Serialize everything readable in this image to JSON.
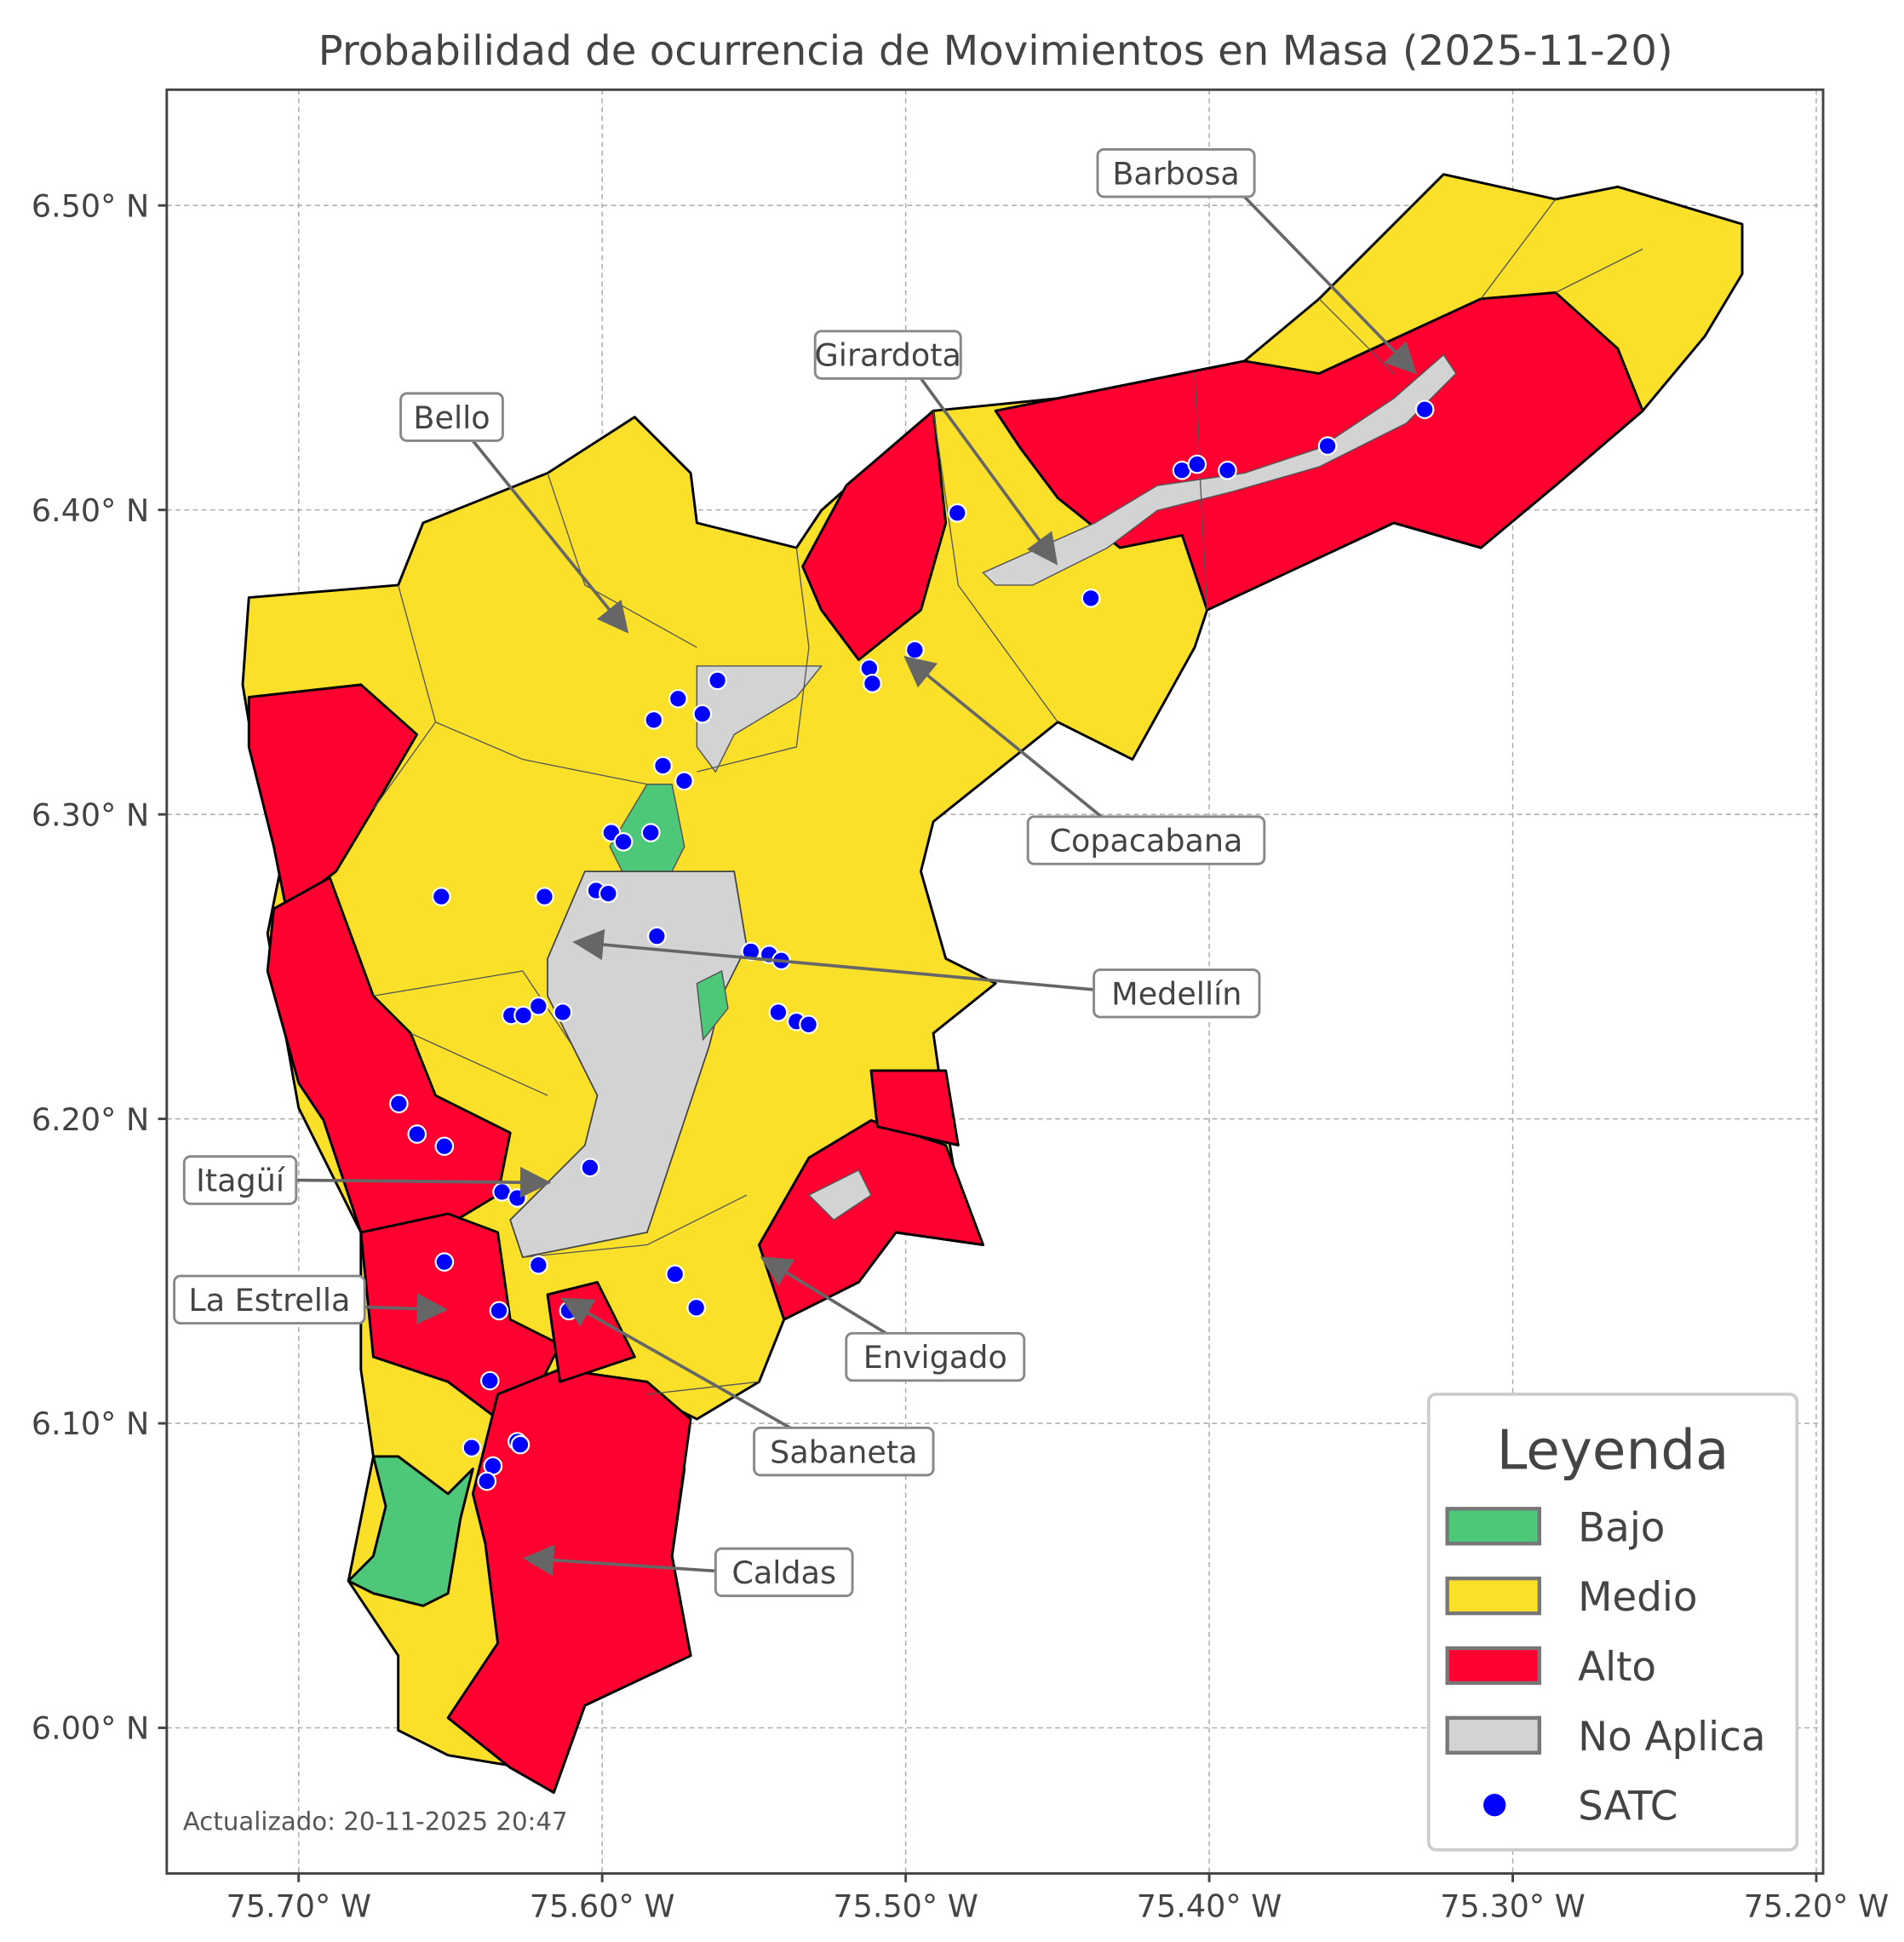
{
  "title": "Probabilidad de ocurrencia de Movimientos en Masa (2025-11-20)",
  "x_ticks": [
    "75.70° W",
    "75.60° W",
    "75.50° W",
    "75.40° W",
    "75.30° W",
    "75.20° W"
  ],
  "y_ticks": [
    "6.50° N",
    "6.40° N",
    "6.30° N",
    "6.20° N",
    "6.10° N",
    "6.00° N"
  ],
  "updated": "Actualizado: 20-11-2025 20:47",
  "colors": {
    "bajo": "#4cc878",
    "medio": "#fbe02a",
    "alto": "#ff0030",
    "no_aplica": "#d3d3d3",
    "satc": "#0000ff"
  },
  "legend": {
    "title": "Leyenda",
    "items": [
      {
        "label": "Bajo",
        "color": "#4cc878"
      },
      {
        "label": "Medio",
        "color": "#fbe02a"
      },
      {
        "label": "Alto",
        "color": "#ff0030"
      },
      {
        "label": "No Aplica",
        "color": "#d3d3d3"
      },
      {
        "label": "SATC",
        "color": "#0000ff"
      }
    ]
  },
  "municipalities": [
    "Barbosa",
    "Girardota",
    "Bello",
    "Copacabana",
    "Medellín",
    "Itagüí",
    "La Estrella",
    "Envigado",
    "Sabaneta",
    "Caldas"
  ],
  "satc_points": [
    [
      75.483,
      6.399
    ],
    [
      75.409,
      6.413
    ],
    [
      75.404,
      6.415
    ],
    [
      75.394,
      6.413
    ],
    [
      75.361,
      6.421
    ],
    [
      75.329,
      6.433
    ],
    [
      75.439,
      6.371
    ],
    [
      75.497,
      6.354
    ],
    [
      75.512,
      6.348
    ],
    [
      75.511,
      6.343
    ],
    [
      75.562,
      6.344
    ],
    [
      75.575,
      6.338
    ],
    [
      75.567,
      6.333
    ],
    [
      75.583,
      6.331
    ],
    [
      75.58,
      6.316
    ],
    [
      75.573,
      6.311
    ],
    [
      75.597,
      6.294
    ],
    [
      75.593,
      6.291
    ],
    [
      75.584,
      6.294
    ],
    [
      75.602,
      6.275
    ],
    [
      75.598,
      6.274
    ],
    [
      75.619,
      6.273
    ],
    [
      75.653,
      6.273
    ],
    [
      75.582,
      6.26
    ],
    [
      75.551,
      6.255
    ],
    [
      75.545,
      6.254
    ],
    [
      75.541,
      6.252
    ],
    [
      75.542,
      6.235
    ],
    [
      75.536,
      6.232
    ],
    [
      75.532,
      6.231
    ],
    [
      75.621,
      6.237
    ],
    [
      75.63,
      6.234
    ],
    [
      75.626,
      6.234
    ],
    [
      75.613,
      6.235
    ],
    [
      75.667,
      6.205
    ],
    [
      75.661,
      6.195
    ],
    [
      75.652,
      6.191
    ],
    [
      75.604,
      6.184
    ],
    [
      75.633,
      6.176
    ],
    [
      75.628,
      6.174
    ],
    [
      75.621,
      6.152
    ],
    [
      75.652,
      6.153
    ],
    [
      75.576,
      6.149
    ],
    [
      75.569,
      6.138
    ],
    [
      75.634,
      6.137
    ],
    [
      75.611,
      6.137
    ],
    [
      75.637,
      6.114
    ],
    [
      75.643,
      6.092
    ],
    [
      75.628,
      6.094
    ],
    [
      75.627,
      6.093
    ],
    [
      75.636,
      6.086
    ],
    [
      75.638,
      6.081
    ]
  ]
}
